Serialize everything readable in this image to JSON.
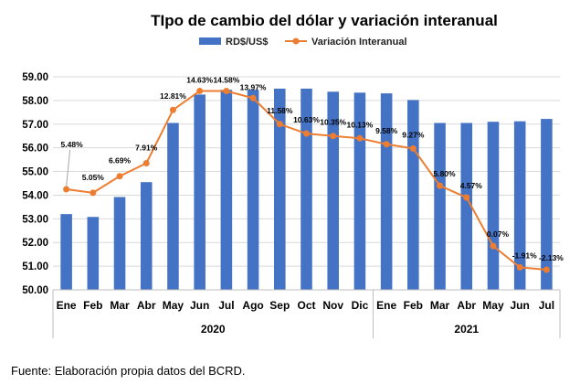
{
  "chart_data": {
    "type": "bar",
    "title": "TIpo de cambio del dólar y variación interanual",
    "categories": [
      "Ene",
      "Feb",
      "Mar",
      "Abr",
      "May",
      "Jun",
      "Jul",
      "Ago",
      "Sep",
      "Oct",
      "Nov",
      "Dic",
      "Ene",
      "Feb",
      "Mar",
      "Abr",
      "May",
      "Jun",
      "Jul"
    ],
    "groups": [
      {
        "label": "2020",
        "count": 12
      },
      {
        "label": "2021",
        "count": 7
      }
    ],
    "series": [
      {
        "name": "RD$/US$",
        "type": "bar",
        "color": "#4472C4",
        "values": [
          53.2,
          53.08,
          53.92,
          54.55,
          57.05,
          58.25,
          58.45,
          58.45,
          58.5,
          58.5,
          58.37,
          58.33,
          58.3,
          58.02,
          57.05,
          57.05,
          57.1,
          57.12,
          57.22
        ]
      },
      {
        "name": "Variación Interanual",
        "type": "line",
        "color": "#ED7D31",
        "values": [
          54.25,
          54.1,
          54.8,
          55.35,
          57.6,
          58.4,
          58.4,
          58.1,
          57.0,
          56.6,
          56.5,
          56.4,
          56.15,
          55.97,
          54.4,
          53.9,
          51.85,
          50.95,
          50.85
        ],
        "labels": [
          "5.48%",
          "5.05%",
          "6.69%",
          "7.91%",
          "12.81%",
          "14.63%",
          "14.58%",
          "13.97%",
          "11.58%",
          "10.63%",
          "10.35%",
          "10.13%",
          "9.58%",
          "9.27%",
          "5.80%",
          "4.57%",
          "0.07%",
          "-1.91%",
          "-2.13%"
        ]
      }
    ],
    "ylim": [
      50.0,
      59.0
    ],
    "yticks": [
      "50.00",
      "51.00",
      "52.00",
      "53.00",
      "54.00",
      "55.00",
      "56.00",
      "57.00",
      "58.00",
      "59.00"
    ],
    "grid": true,
    "legend": "top"
  },
  "source": "Fuente: Elaboración propia datos del BCRD."
}
